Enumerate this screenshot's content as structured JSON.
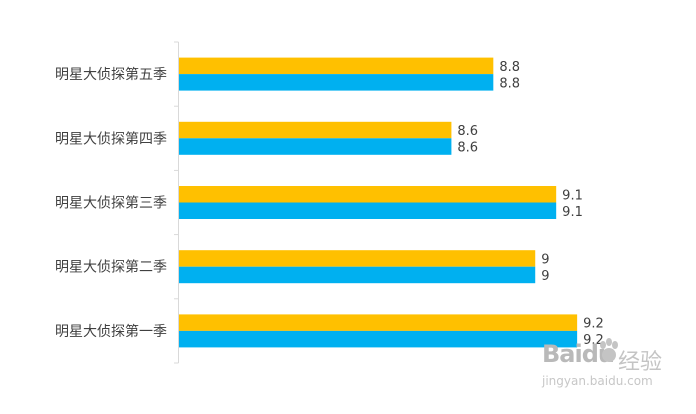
{
  "chart_data": {
    "type": "bar",
    "orientation": "horizontal",
    "categories": [
      "明星大侦探第五季",
      "明星大侦探第四季",
      "明星大侦探第三季",
      "明星大侦探第二季",
      "明星大侦探第一季"
    ],
    "series": [
      {
        "values": [
          8.8,
          8.6,
          9.1,
          9.0,
          9.2
        ],
        "color": "#FFC000"
      },
      {
        "values": [
          8.8,
          8.6,
          9.1,
          9.0,
          9.2
        ],
        "color": "#00B0F0"
      }
    ],
    "value_labels": [
      [
        "8.8",
        "8.6",
        "9.1",
        "9",
        "9.2"
      ],
      [
        "8.8",
        "8.6",
        "9.1",
        "9",
        "9.2"
      ]
    ],
    "xlim": [
      7.3,
      9.5
    ],
    "grid": false,
    "legend": "none"
  },
  "watermark": {
    "brand": "Baidu",
    "title": "经验",
    "url": "jingyan.baidu.com"
  }
}
